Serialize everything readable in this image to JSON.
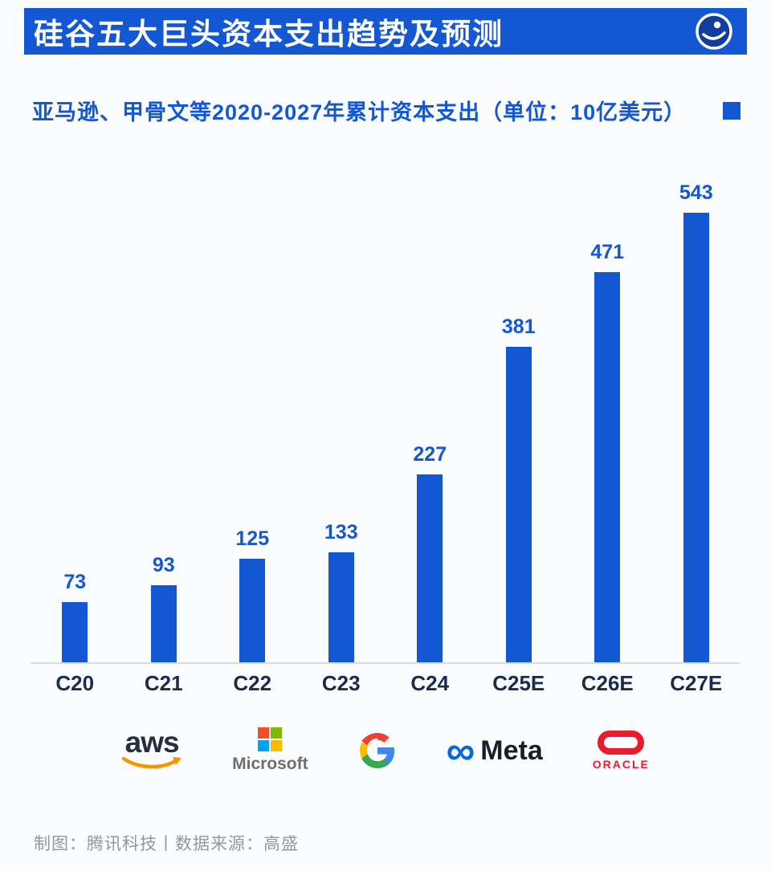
{
  "header": {
    "title": "硅谷五大巨头资本支出趋势及预测",
    "logo_icon": "tencent-tech-logo"
  },
  "subtitle": {
    "text": "亚马逊、甲骨文等2020-2027年累计资本支出（单位：10亿美元）"
  },
  "chart_data": {
    "type": "bar",
    "categories": [
      "C20",
      "C21",
      "C22",
      "C23",
      "C24",
      "C25E",
      "C26E",
      "C27E"
    ],
    "values": [
      73,
      93,
      125,
      133,
      227,
      381,
      471,
      543
    ],
    "title": "亚马逊、甲骨文等2020-2027年累计资本支出（单位：10亿美元）",
    "xlabel": "",
    "ylabel": "",
    "ylim": [
      0,
      560
    ],
    "grid": false,
    "legend_position": "top-right",
    "bar_color": "#1457d3",
    "value_labels_shown": true
  },
  "logos": {
    "aws": {
      "label": "aws",
      "icon": "aws-smile-arrow-icon",
      "accent": "#f79400"
    },
    "microsoft": {
      "label": "Microsoft",
      "icon": "microsoft-squares-icon"
    },
    "google": {
      "icon": "google-g-icon"
    },
    "meta": {
      "label": "Meta",
      "infinity": "∞",
      "accent": "#0768e1"
    },
    "oracle": {
      "label": "ORACLE",
      "icon": "oracle-ring-icon",
      "accent": "#ea1b2d"
    }
  },
  "footer": {
    "text": "制图：腾讯科技丨数据来源：高盛"
  },
  "colors": {
    "accent_blue": "#1457d3",
    "axis_label": "#1b2b4e",
    "axis_line": "#d8dbdf",
    "footer_text": "#94979c",
    "background": "#fbfcfd"
  }
}
